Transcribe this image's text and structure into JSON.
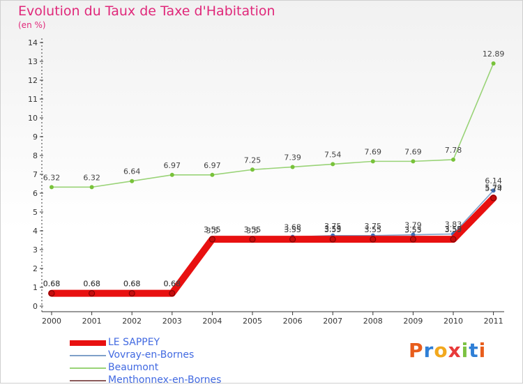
{
  "chart_title": "Evolution du Taux de Taxe d'Habitation",
  "unit_label": "(en %)",
  "brand": {
    "name": "Proxiti",
    "letters": [
      "P",
      "r",
      "o",
      "x",
      "i",
      "t",
      "i"
    ],
    "colors": [
      "#e85d1c",
      "#2f7fd6",
      "#f2a81d",
      "#e83a3a",
      "#7cc242",
      "#2f7fd6",
      "#e85d1c"
    ]
  },
  "chart_data": {
    "type": "line",
    "title": "Evolution du Taux de Taxe d'Habitation",
    "ylabel": "(en %)",
    "xlabel": "",
    "categories": [
      "2000",
      "2001",
      "2002",
      "2003",
      "2004",
      "2005",
      "2006",
      "2007",
      "2008",
      "2009",
      "2010",
      "2011"
    ],
    "ylim": [
      0,
      14
    ],
    "yticks": [
      "0",
      "1",
      "2",
      "3",
      "4",
      "5",
      "6",
      "7",
      "8",
      "9",
      "10",
      "11",
      "12",
      "13",
      "14"
    ],
    "legend_position": "bottom-left",
    "grid": false,
    "series": [
      {
        "name": "Beaumont",
        "color": "#99d377",
        "marker": "#78c23a",
        "values": [
          6.32,
          6.32,
          6.64,
          6.97,
          6.97,
          7.25,
          7.39,
          7.54,
          7.69,
          7.69,
          7.78,
          12.89
        ],
        "labels": [
          "6.32",
          "6.32",
          "6.64",
          "6.97",
          "6.97",
          "7.25",
          "7.39",
          "7.54",
          "7.69",
          "7.69",
          "7.78",
          "12.89"
        ]
      },
      {
        "name": "Vovray-en-Bornes",
        "color": "#7fa0c8",
        "marker": "#3d6db5",
        "values": [
          0.68,
          0.68,
          0.68,
          0.68,
          3.55,
          3.55,
          3.68,
          3.75,
          3.75,
          3.79,
          3.83,
          6.14
        ],
        "labels": [
          "0.68",
          "0.68",
          "0.68",
          "0.68",
          "3.55",
          "3.55",
          "3.68",
          "3.75",
          "3.75",
          "3.79",
          "3.83",
          "6.14"
        ]
      },
      {
        "name": "Menthonnex-en-Bornes",
        "color": "#8a5a5a",
        "marker": "#6b3b3b",
        "values": [
          0.68,
          0.68,
          0.68,
          0.68,
          3.5,
          3.5,
          3.55,
          3.59,
          3.55,
          3.53,
          3.59,
          5.79
        ],
        "labels": [
          "0.68",
          "0.68",
          "0.68",
          "0.68",
          "3.5",
          "3.5",
          "3.55",
          "3.59",
          "3.55",
          "3.53",
          "3.59",
          "5.79"
        ]
      },
      {
        "name": "LE SAPPEY",
        "color": "#e81010",
        "marker": "#c40d0d",
        "values": [
          0.68,
          0.68,
          0.68,
          0.68,
          3.55,
          3.55,
          3.55,
          3.55,
          3.55,
          3.55,
          3.55,
          5.74
        ],
        "labels": [
          "0.68",
          "0.68",
          "0.68",
          "0.68",
          "3.55",
          "3.55",
          "3.55",
          "3.55",
          "3.55",
          "3.55",
          "3.55",
          "5.74"
        ]
      }
    ],
    "legend": [
      {
        "name": "LE SAPPEY",
        "color": "#e81010",
        "thickness": "thick"
      },
      {
        "name": "Vovray-en-Bornes",
        "color": "#7fa0c8",
        "thickness": "thin"
      },
      {
        "name": "Beaumont",
        "color": "#99d377",
        "thickness": "thin"
      },
      {
        "name": "Menthonnex-en-Bornes",
        "color": "#8a5a5a",
        "thickness": "thin"
      }
    ]
  }
}
